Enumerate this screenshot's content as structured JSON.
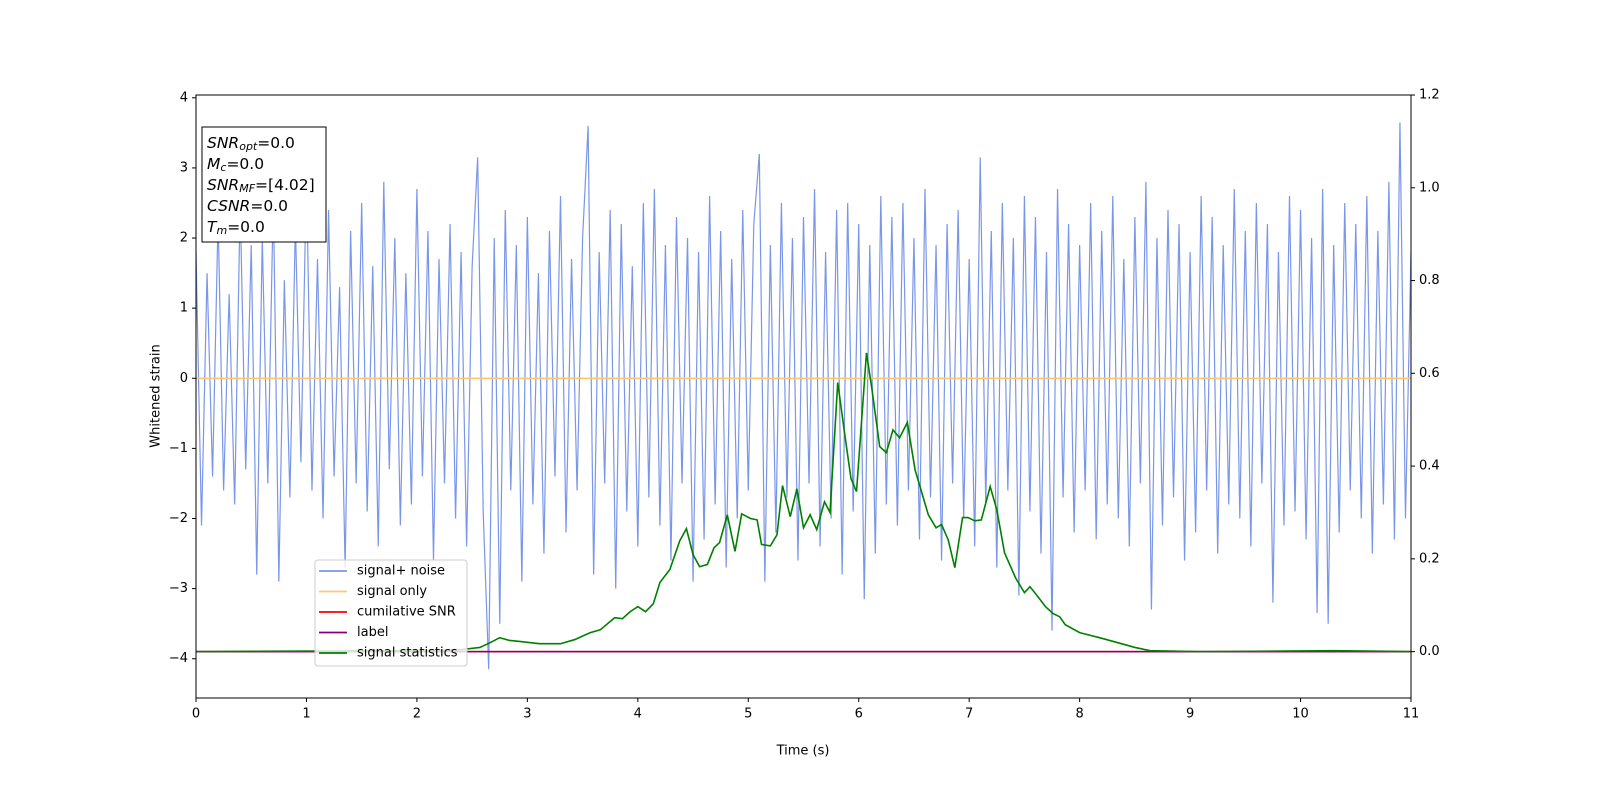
{
  "chart_data": {
    "type": "line",
    "xlabel": "Time (s)",
    "ylabel": "Whitened strain",
    "xlim": [
      0,
      11
    ],
    "xticks": [
      0,
      1,
      2,
      3,
      4,
      5,
      6,
      7,
      8,
      9,
      10,
      11
    ],
    "ylim": [
      -4.56,
      4.04
    ],
    "yticks": [
      {
        "value": -4,
        "label": "−4"
      },
      {
        "value": -3,
        "label": "−3"
      },
      {
        "value": -2,
        "label": "−2"
      },
      {
        "value": -1,
        "label": "−1"
      },
      0,
      1,
      2,
      3,
      4
    ],
    "y2lim": [
      -0.1,
      1.2
    ],
    "y2ticks": [
      {
        "value": 0,
        "label": "0.0"
      },
      {
        "value": 0.2,
        "label": "0.2"
      },
      {
        "value": 0.4,
        "label": "0.4"
      },
      {
        "value": 0.6,
        "label": "0.6"
      },
      {
        "value": 0.8,
        "label": "0.8"
      },
      {
        "value": 1.0,
        "label": "1.0"
      },
      {
        "value": 1.2,
        "label": "1.2"
      }
    ],
    "annotations": [
      {
        "main": "SNR",
        "sub": "opt",
        "text": "=0.0"
      },
      {
        "main": "M",
        "sub": "c",
        "text": "=0.0"
      },
      {
        "main": "SNR",
        "sub": "MF",
        "text": "=[4.02]"
      },
      {
        "main": "CSNR",
        "text": "=0.0"
      },
      {
        "main": "T",
        "sub": "m",
        "text": "=0.0"
      }
    ],
    "series": [
      {
        "name": "signal+ noise",
        "color": "#7a96e8",
        "x": [
          0,
          0.05,
          0.1,
          0.15,
          0.2,
          0.25,
          0.3,
          0.35,
          0.4,
          0.45,
          0.5,
          0.55,
          0.6,
          0.65,
          0.7,
          0.75,
          0.8,
          0.85,
          0.9,
          0.95,
          1,
          1.05,
          1.1,
          1.15,
          1.2,
          1.25,
          1.3,
          1.35,
          1.4,
          1.45,
          1.5,
          1.55,
          1.6,
          1.65,
          1.7,
          1.75,
          1.8,
          1.85,
          1.9,
          1.95,
          2,
          2.05,
          2.1,
          2.15,
          2.2,
          2.25,
          2.3,
          2.35,
          2.4,
          2.45,
          2.5,
          2.55,
          2.6,
          2.65,
          2.7,
          2.75,
          2.8,
          2.85,
          2.9,
          2.95,
          3,
          3.05,
          3.1,
          3.15,
          3.2,
          3.25,
          3.3,
          3.35,
          3.4,
          3.45,
          3.5,
          3.55,
          3.6,
          3.65,
          3.7,
          3.75,
          3.8,
          3.85,
          3.9,
          3.95,
          4,
          4.05,
          4.1,
          4.15,
          4.2,
          4.25,
          4.3,
          4.35,
          4.4,
          4.45,
          4.5,
          4.55,
          4.6,
          4.65,
          4.7,
          4.75,
          4.8,
          4.85,
          4.9,
          4.95,
          5,
          5.05,
          5.1,
          5.15,
          5.2,
          5.25,
          5.3,
          5.35,
          5.4,
          5.45,
          5.5,
          5.55,
          5.6,
          5.65,
          5.7,
          5.75,
          5.8,
          5.85,
          5.9,
          5.95,
          6,
          6.05,
          6.1,
          6.15,
          6.2,
          6.25,
          6.3,
          6.35,
          6.4,
          6.45,
          6.5,
          6.55,
          6.6,
          6.65,
          6.7,
          6.75,
          6.8,
          6.85,
          6.9,
          6.95,
          7,
          7.05,
          7.1,
          7.15,
          7.2,
          7.25,
          7.3,
          7.35,
          7.4,
          7.45,
          7.5,
          7.55,
          7.6,
          7.65,
          7.7,
          7.75,
          7.8,
          7.85,
          7.9,
          7.95,
          8,
          8.05,
          8.1,
          8.15,
          8.2,
          8.25,
          8.3,
          8.35,
          8.4,
          8.45,
          8.5,
          8.55,
          8.6,
          8.65,
          8.7,
          8.75,
          8.8,
          8.85,
          8.9,
          8.95,
          9,
          9.05,
          9.1,
          9.15,
          9.2,
          9.25,
          9.3,
          9.35,
          9.4,
          9.45,
          9.5,
          9.55,
          9.6,
          9.65,
          9.7,
          9.75,
          9.8,
          9.85,
          9.9,
          9.95,
          10,
          10.05,
          10.1,
          10.15,
          10.2,
          10.25,
          10.3,
          10.35,
          10.4,
          10.45,
          10.5,
          10.55,
          10.6,
          10.65,
          10.7,
          10.75,
          10.8,
          10.85,
          10.9,
          10.95,
          11
        ],
        "values": [
          1.8,
          -2.1,
          1.5,
          -1.4,
          2.3,
          -1.6,
          1.2,
          -1.8,
          2.5,
          -1.3,
          1.9,
          -2.8,
          2.0,
          -1.5,
          2.6,
          -2.9,
          1.4,
          -1.7,
          2.2,
          -1.2,
          2.9,
          -1.6,
          1.7,
          -2.0,
          2.4,
          -1.4,
          1.3,
          -2.7,
          2.1,
          -1.5,
          2.5,
          -1.9,
          1.6,
          -2.4,
          2.8,
          -1.3,
          2.0,
          -2.1,
          1.5,
          -1.8,
          2.7,
          -1.4,
          2.1,
          -2.6,
          1.7,
          -1.5,
          2.2,
          -2.0,
          1.8,
          -2.4,
          1.6,
          3.15,
          -1.9,
          -4.15,
          2.0,
          -3.5,
          2.4,
          -1.6,
          1.9,
          -2.9,
          2.3,
          -1.8,
          1.5,
          -2.5,
          2.1,
          -1.4,
          2.6,
          -2.2,
          1.7,
          -1.6,
          2.0,
          3.6,
          -2.8,
          1.8,
          -1.5,
          2.4,
          -3.0,
          2.2,
          -1.9,
          1.6,
          -2.4,
          2.5,
          -1.7,
          2.7,
          -2.1,
          1.9,
          -2.6,
          2.3,
          -1.5,
          2.0,
          -2.9,
          1.8,
          -2.3,
          2.6,
          -1.8,
          2.1,
          -2.7,
          1.7,
          -2.0,
          2.4,
          -1.6,
          2.2,
          3.2,
          -2.9,
          1.9,
          -2.2,
          2.5,
          -1.7,
          2.0,
          -2.6,
          2.3,
          -1.5,
          2.7,
          -2.4,
          1.8,
          -2.0,
          2.4,
          -2.8,
          2.5,
          -1.9,
          2.2,
          -3.15,
          1.9,
          -2.5,
          2.6,
          -1.8,
          2.3,
          -2.1,
          2.5,
          -1.6,
          2.0,
          -2.3,
          2.7,
          -1.7,
          1.9,
          -2.6,
          2.2,
          -1.5,
          2.4,
          -2.0,
          1.7,
          -2.4,
          3.15,
          -1.8,
          2.1,
          -2.7,
          2.5,
          -1.6,
          2.0,
          -3.1,
          2.6,
          -1.9,
          2.3,
          -2.5,
          1.8,
          -3.6,
          2.7,
          -1.7,
          2.2,
          -2.2,
          1.9,
          -1.6,
          2.5,
          -2.3,
          2.1,
          -1.8,
          2.6,
          -2.0,
          1.7,
          -2.4,
          2.3,
          -1.5,
          2.8,
          -3.3,
          2.0,
          -2.1,
          2.4,
          -1.7,
          2.2,
          -2.6,
          1.8,
          -2.2,
          2.6,
          -1.6,
          2.3,
          -2.5,
          1.9,
          -1.8,
          2.7,
          -2.0,
          2.1,
          -2.4,
          2.5,
          -1.5,
          2.2,
          -3.2,
          1.8,
          -2.1,
          2.6,
          -1.9,
          2.4,
          -2.3,
          2.0,
          -3.35,
          2.7,
          -3.5,
          1.9,
          -2.2,
          2.5,
          -1.6,
          2.2,
          -2.0,
          2.6,
          -2.5,
          2.1,
          -1.8,
          2.8,
          -2.3,
          3.65,
          -2.0,
          1.8
        ]
      },
      {
        "name": "signal only",
        "color": "#ffc870",
        "x": [
          0,
          11
        ],
        "values": [
          0,
          0
        ]
      },
      {
        "name": "cumilative SNR",
        "color": "#ff0000",
        "axis": "y2",
        "x": [
          0,
          11
        ],
        "values": [
          0,
          0
        ]
      },
      {
        "name": "label",
        "color": "#800080",
        "axis": "y2",
        "x": [
          0,
          11
        ],
        "values": [
          0,
          0
        ]
      },
      {
        "name": "signal statistics",
        "color": "#008000",
        "axis": "y2",
        "x": [
          0,
          1.85,
          2.39,
          2.57,
          2.66,
          2.75,
          2.84,
          2.93,
          3.11,
          3.3,
          3.43,
          3.57,
          3.66,
          3.79,
          3.86,
          3.93,
          4.0,
          4.07,
          4.14,
          4.2,
          4.29,
          4.38,
          4.44,
          4.5,
          4.56,
          4.63,
          4.69,
          4.74,
          4.81,
          4.88,
          4.94,
          5.02,
          5.08,
          5.12,
          5.2,
          5.26,
          5.31,
          5.38,
          5.44,
          5.5,
          5.56,
          5.62,
          5.69,
          5.74,
          5.81,
          5.88,
          5.93,
          5.98,
          6.07,
          6.12,
          6.19,
          6.25,
          6.31,
          6.37,
          6.44,
          6.51,
          6.63,
          6.7,
          6.75,
          6.81,
          6.87,
          6.94,
          6.99,
          7.05,
          7.11,
          7.19,
          7.25,
          7.32,
          7.42,
          7.5,
          7.55,
          7.62,
          7.69,
          7.76,
          7.82,
          7.87,
          8.0,
          8.18,
          8.35,
          8.5,
          8.64,
          9.09,
          10.3,
          11
        ],
        "values": [
          0,
          0.002,
          0.004,
          0.009,
          0.019,
          0.03,
          0.024,
          0.022,
          0.017,
          0.017,
          0.026,
          0.041,
          0.047,
          0.073,
          0.071,
          0.086,
          0.097,
          0.086,
          0.103,
          0.149,
          0.177,
          0.239,
          0.265,
          0.209,
          0.183,
          0.188,
          0.224,
          0.235,
          0.295,
          0.216,
          0.297,
          0.287,
          0.284,
          0.231,
          0.228,
          0.252,
          0.358,
          0.291,
          0.351,
          0.267,
          0.295,
          0.263,
          0.323,
          0.3,
          0.58,
          0.457,
          0.373,
          0.345,
          0.644,
          0.565,
          0.442,
          0.429,
          0.478,
          0.461,
          0.494,
          0.392,
          0.295,
          0.267,
          0.274,
          0.241,
          0.181,
          0.289,
          0.289,
          0.282,
          0.284,
          0.356,
          0.306,
          0.213,
          0.159,
          0.127,
          0.14,
          0.119,
          0.097,
          0.082,
          0.075,
          0.058,
          0.041,
          0.03,
          0.019,
          0.009,
          0.002,
          0,
          0.002,
          0
        ]
      }
    ]
  }
}
